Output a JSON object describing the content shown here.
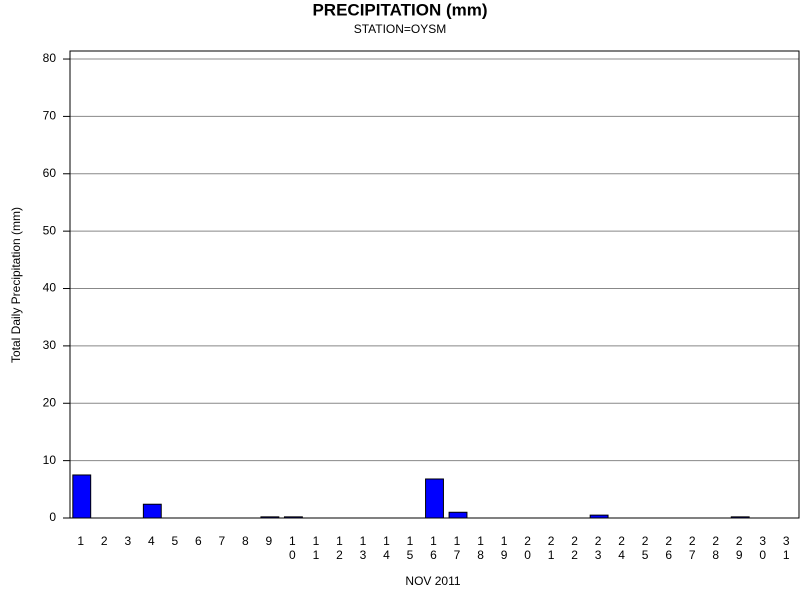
{
  "chart_data": {
    "type": "bar",
    "title": "PRECIPITATION (mm)",
    "subtitle": "STATION=OYSM",
    "x_label": "NOV 2011",
    "y_label": "Total Daily Precipitation (mm)",
    "categories": [
      "1",
      "2",
      "3",
      "4",
      "5",
      "6",
      "7",
      "8",
      "9",
      "10",
      "11",
      "12",
      "13",
      "14",
      "15",
      "16",
      "17",
      "18",
      "19",
      "20",
      "21",
      "22",
      "23",
      "24",
      "25",
      "26",
      "27",
      "28",
      "29",
      "30",
      "31"
    ],
    "values": [
      7.5,
      0,
      0,
      2.4,
      0,
      0,
      0,
      0,
      0.2,
      0.2,
      0,
      0,
      0,
      0,
      0,
      6.8,
      1.0,
      0,
      0,
      0,
      0,
      0,
      0.5,
      0,
      0,
      0,
      0,
      0,
      0.2,
      0,
      0
    ],
    "color": "#0000ff",
    "ylim": [
      0,
      81.4
    ],
    "yticks": [
      0,
      10,
      20,
      30,
      40,
      50,
      60,
      70,
      80
    ],
    "grid": true
  }
}
